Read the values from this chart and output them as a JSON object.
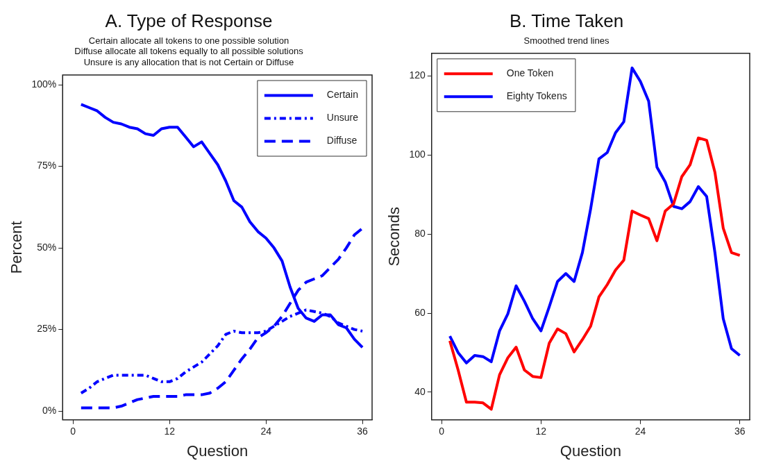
{
  "chart_data": [
    {
      "type": "line",
      "title": "A. Type of Response",
      "subtitle": "Certain allocate all tokens to one possible solution\nDiffuse allocate all tokens equally to all possible solutions\nUnsure is any allocation that is not Certain or Diffuse",
      "xlabel": "Question",
      "ylabel": "Percent",
      "x": [
        1,
        2,
        3,
        4,
        5,
        6,
        7,
        8,
        9,
        10,
        11,
        12,
        13,
        14,
        15,
        16,
        17,
        18,
        19,
        20,
        21,
        22,
        23,
        24,
        25,
        26,
        27,
        28,
        29,
        30,
        31,
        32,
        33,
        34,
        35,
        36
      ],
      "series": [
        {
          "name": "Certain",
          "color": "#0000ff",
          "line_style": "solid",
          "values": [
            94,
            93,
            92,
            90,
            88.5,
            88,
            87,
            86.5,
            85,
            84.5,
            86.5,
            87,
            87,
            84,
            81,
            82.5,
            79,
            75.5,
            70.5,
            64.5,
            62.5,
            58,
            55,
            53,
            50,
            46,
            38,
            31.5,
            28.5,
            27.5,
            29.5,
            29.5,
            26.5,
            25.5,
            22,
            19.5
          ]
        },
        {
          "name": "Unsure",
          "color": "#0000ff",
          "line_style": "dotted",
          "values": [
            5.5,
            7,
            9,
            10,
            11,
            11,
            11,
            11,
            11,
            10,
            9,
            9,
            10,
            12,
            13.5,
            15,
            17.5,
            20,
            23.5,
            24.5,
            24,
            24,
            24,
            24.5,
            26,
            27.5,
            29,
            30,
            31,
            30.5,
            30,
            29,
            27,
            26,
            25,
            24.5
          ]
        },
        {
          "name": "Diffuse",
          "color": "#0000ff",
          "line_style": "dashed",
          "values": [
            1,
            1,
            1,
            1,
            1,
            1.5,
            2.5,
            3.5,
            4,
            4.5,
            4.5,
            4.5,
            4.5,
            5,
            5,
            5,
            5.5,
            7,
            9,
            12.5,
            16,
            19,
            22.5,
            24,
            26,
            29,
            33,
            37,
            39.5,
            40.5,
            41.5,
            44,
            46.5,
            50,
            54,
            56
          ]
        }
      ],
      "xlim": [
        -1.3,
        37.2
      ],
      "xticks": [
        0,
        12,
        24,
        36
      ],
      "ylim": [
        -2.7,
        103
      ],
      "yticks": [
        {
          "value": 0,
          "label": "0%"
        },
        {
          "value": 25,
          "label": "25%"
        },
        {
          "value": 50,
          "label": "50%"
        },
        {
          "value": 75,
          "label": "75%"
        },
        {
          "value": 100,
          "label": "100%"
        }
      ],
      "grid": false,
      "legend": "top right",
      "marker": "none"
    },
    {
      "type": "line",
      "title": "B. Time Taken",
      "subtitle": "Smoothed trend lines",
      "xlabel": "Question",
      "ylabel": "Seconds",
      "x": [
        1,
        2,
        3,
        4,
        5,
        6,
        7,
        8,
        9,
        10,
        11,
        12,
        13,
        14,
        15,
        16,
        17,
        18,
        19,
        20,
        21,
        22,
        23,
        24,
        25,
        26,
        27,
        28,
        29,
        30,
        31,
        32,
        33,
        34,
        35,
        36
      ],
      "series": [
        {
          "name": "One Token",
          "color": "#ff0000",
          "values": [
            53,
            45.6,
            37.5,
            37.5,
            37.3,
            35.7,
            44.4,
            48.7,
            51.4,
            45.6,
            44,
            43.7,
            52.4,
            56,
            54.8,
            50.2,
            53.3,
            56.7,
            64.1,
            67.2,
            70.9,
            73.4,
            85.8,
            84.8,
            83.9,
            78.3,
            85.8,
            87.6,
            94.5,
            97.5,
            104.3,
            103.7,
            95.6,
            81.5,
            75.3,
            74.6
          ]
        },
        {
          "name": "Eighty Tokens",
          "color": "#0000ff",
          "values": [
            54.2,
            50,
            47.4,
            49.3,
            49,
            47.7,
            55.5,
            59.8,
            66.9,
            63,
            58.6,
            55.5,
            61.6,
            68,
            70,
            68,
            75.3,
            86.4,
            99,
            100.6,
            105.6,
            108.4,
            122,
            118.6,
            113.6,
            96.9,
            93.2,
            87,
            86.4,
            88.2,
            92,
            89.5,
            75.3,
            58.6,
            51,
            49.3
          ]
        }
      ],
      "xlim": [
        -1.2,
        37.2
      ],
      "xticks": [
        0,
        12,
        24,
        36
      ],
      "ylim": [
        33,
        125.7
      ],
      "yticks": [
        40,
        60,
        80,
        100,
        120
      ],
      "grid": false,
      "legend": "top left",
      "marker": "none"
    }
  ]
}
